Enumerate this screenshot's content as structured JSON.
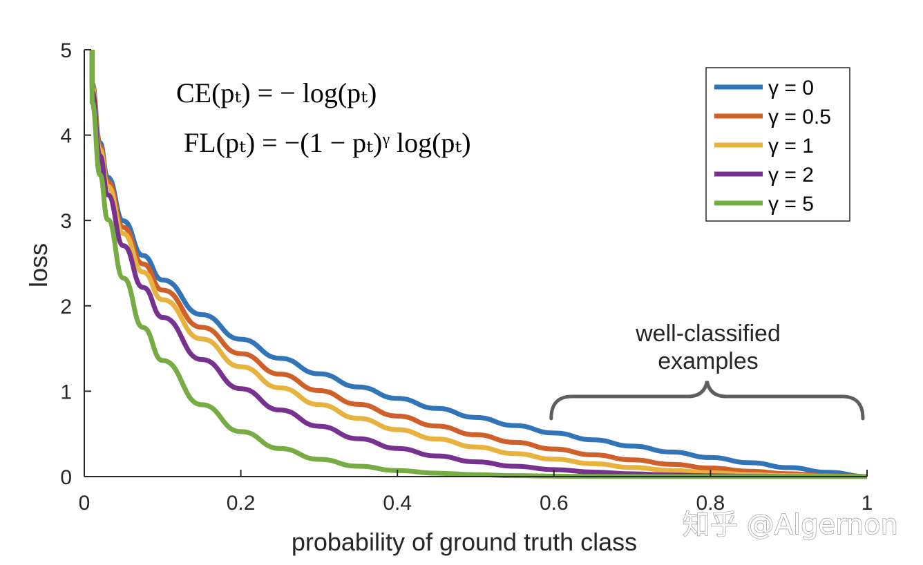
{
  "chart_data": {
    "type": "line",
    "title": "",
    "xlabel": "probability of ground truth class",
    "ylabel": "loss",
    "xlim": [
      0,
      1
    ],
    "ylim": [
      0,
      5
    ],
    "x_ticks": [
      "0",
      "0.2",
      "0.4",
      "0.6",
      "0.8",
      "1"
    ],
    "y_ticks": [
      "0",
      "1",
      "2",
      "3",
      "4",
      "5"
    ],
    "grid": false,
    "legend_position": "top-right",
    "x": [
      0.01,
      0.02,
      0.03,
      0.05,
      0.075,
      0.1,
      0.15,
      0.2,
      0.25,
      0.3,
      0.35,
      0.4,
      0.45,
      0.5,
      0.55,
      0.6,
      0.65,
      0.7,
      0.75,
      0.8,
      0.85,
      0.9,
      0.95,
      1.0
    ],
    "series": [
      {
        "name": "γ = 0",
        "color": "#3274b8",
        "values": [
          4.605,
          3.912,
          3.507,
          2.996,
          2.59,
          2.303,
          1.897,
          1.609,
          1.386,
          1.204,
          1.05,
          0.916,
          0.799,
          0.693,
          0.598,
          0.511,
          0.431,
          0.357,
          0.288,
          0.223,
          0.163,
          0.105,
          0.051,
          0.0
        ]
      },
      {
        "name": "γ = 0.5",
        "color": "#d0602a",
        "values": [
          4.582,
          3.873,
          3.455,
          2.92,
          2.491,
          2.184,
          1.749,
          1.44,
          1.2,
          1.007,
          0.846,
          0.709,
          0.592,
          0.49,
          0.401,
          0.323,
          0.255,
          0.196,
          0.144,
          0.1,
          0.063,
          0.033,
          0.011,
          0.0
        ]
      },
      {
        "name": "γ = 1",
        "color": "#e8b23e",
        "values": [
          4.559,
          3.834,
          3.402,
          2.846,
          2.396,
          2.072,
          1.612,
          1.287,
          1.04,
          0.843,
          0.682,
          0.55,
          0.44,
          0.347,
          0.269,
          0.204,
          0.151,
          0.107,
          0.072,
          0.045,
          0.024,
          0.011,
          0.003,
          0.0
        ]
      },
      {
        "name": "γ = 2",
        "color": "#77318e",
        "values": [
          4.514,
          3.757,
          3.3,
          2.704,
          2.216,
          1.865,
          1.371,
          1.03,
          0.78,
          0.59,
          0.444,
          0.33,
          0.242,
          0.173,
          0.121,
          0.082,
          0.053,
          0.032,
          0.018,
          0.009,
          0.004,
          0.001,
          0.0,
          0.0
        ]
      },
      {
        "name": "γ = 5",
        "color": "#77ac43",
        "values": [
          4.381,
          3.536,
          3.01,
          2.325,
          1.747,
          1.36,
          0.842,
          0.527,
          0.329,
          0.202,
          0.121,
          0.071,
          0.04,
          0.022,
          0.011,
          0.005,
          0.002,
          0.001,
          0.0,
          0.0,
          0.0,
          0.0,
          0.0,
          0.0
        ]
      }
    ],
    "annotations": {
      "ce_formula": "CE(pₜ) = − log(pₜ)",
      "fl_formula": "FL(pₜ) = −(1 − pₜ)ᵞ log(pₜ)",
      "bracket_line1": "well-classified",
      "bracket_line2": "examples",
      "bracket_range": [
        0.6,
        1.0
      ]
    }
  },
  "watermark": "知乎 @Algernon"
}
